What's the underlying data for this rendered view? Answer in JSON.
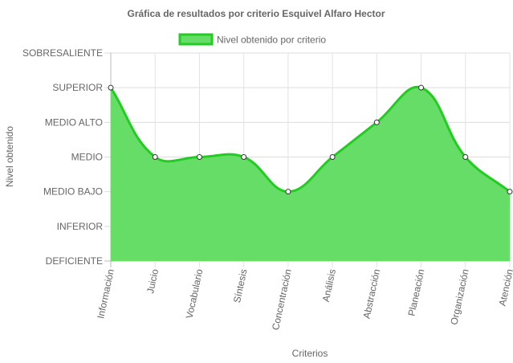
{
  "chart_data": {
    "type": "area",
    "title": "Gráfica de resultados por criterio Esquivel Alfaro Hector",
    "xlabel": "Criterios",
    "ylabel": "Nivel obtenido",
    "legend_position": "top-center",
    "grid": true,
    "y_levels": [
      "DEFICIENTE",
      "INFERIOR",
      "MEDIO BAJO",
      "MEDIO",
      "MEDIO ALTO",
      "SUPERIOR",
      "SOBRESALIENTE"
    ],
    "ylim": [
      0,
      6
    ],
    "categories": [
      "Información",
      "Juicio",
      "Vocabulario",
      "Síntesis",
      "Concentración",
      "Análisis",
      "Abstracción",
      "Planeación",
      "Organización",
      "Atención"
    ],
    "series": [
      {
        "name": "Nivel obtenido por criterio",
        "values": [
          5,
          3,
          3,
          3,
          2,
          3,
          4,
          5,
          3,
          2
        ],
        "fill_color": "#66dd66",
        "line_color": "#22cc22"
      }
    ]
  }
}
